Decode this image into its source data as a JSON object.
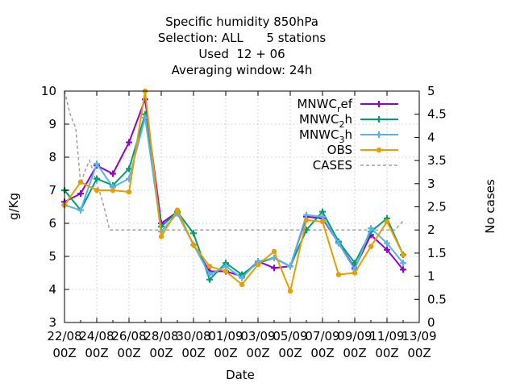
{
  "chart_data": {
    "type": "line",
    "title_lines": [
      "Specific humidity 850hPa",
      "Selection: ALL      5 stations",
      "Used  12 + 06",
      "Averaging window: 24h"
    ],
    "xlabel": "Date",
    "ylabel": "g/Kg",
    "y2label": "No cases",
    "ylim": [
      3,
      10
    ],
    "y2lim": [
      0,
      5
    ],
    "y_ticks": [
      "3",
      "4",
      "5",
      "6",
      "7",
      "8",
      "9",
      "10"
    ],
    "y2_ticks": [
      "0",
      "0.5",
      "1",
      "1.5",
      "2",
      "2.5",
      "3",
      "3.5",
      "4",
      "4.5",
      "5"
    ],
    "x_ticks": [
      {
        "line1": "22/08",
        "line2": "00Z"
      },
      {
        "line1": "24/08",
        "line2": "00Z"
      },
      {
        "line1": "26/08",
        "line2": "00Z"
      },
      {
        "line1": "28/08",
        "line2": "00Z"
      },
      {
        "line1": "30/08",
        "line2": "00Z"
      },
      {
        "line1": "01/09",
        "line2": "00Z"
      },
      {
        "line1": "03/09",
        "line2": "00Z"
      },
      {
        "line1": "05/09",
        "line2": "00Z"
      },
      {
        "line1": "07/09",
        "line2": "00Z"
      },
      {
        "line1": "09/09",
        "line2": "00Z"
      },
      {
        "line1": "11/09",
        "line2": "00Z"
      },
      {
        "line1": "13/09",
        "line2": "00Z"
      }
    ],
    "x_dates": [
      "22/08",
      "23/08",
      "24/08",
      "25/08",
      "26/08",
      "27/08",
      "28/08",
      "29/08",
      "30/08",
      "31/08",
      "01/09",
      "02/09",
      "03/09",
      "04/09",
      "05/09",
      "06/09",
      "07/09",
      "08/09",
      "09/09",
      "10/09",
      "11/09",
      "12/09"
    ],
    "grid": true,
    "legend_position": "top-right",
    "series": [
      {
        "name": "MNWC_ref",
        "legend_main": "MNWC",
        "legend_sub": "r",
        "legend_tail": "ef",
        "color": "#9400d3",
        "marker": "plus",
        "values": [
          6.65,
          6.9,
          7.75,
          7.5,
          8.45,
          9.75,
          6.0,
          6.35,
          5.35,
          4.55,
          4.55,
          4.4,
          4.85,
          4.65,
          4.7,
          6.2,
          6.15,
          5.4,
          4.65,
          5.65,
          5.2,
          4.6
        ]
      },
      {
        "name": "MNWC_2h",
        "legend_main": "MNWC",
        "legend_sub": "2",
        "legend_tail": "h",
        "color": "#009e73",
        "marker": "plus",
        "values": [
          7.0,
          6.4,
          7.35,
          7.15,
          7.65,
          9.3,
          5.9,
          6.35,
          5.7,
          4.3,
          4.8,
          4.45,
          4.8,
          4.95,
          4.7,
          5.8,
          6.35,
          5.45,
          4.8,
          5.75,
          6.15,
          5.05
        ]
      },
      {
        "name": "MNWC_3h",
        "legend_main": "MNWC",
        "legend_sub": "3",
        "legend_tail": "h",
        "color": "#56b4e9",
        "marker": "plus",
        "values": [
          6.55,
          6.4,
          7.8,
          7.1,
          7.35,
          9.2,
          5.75,
          6.3,
          5.35,
          4.45,
          4.7,
          4.35,
          4.85,
          4.95,
          4.7,
          6.25,
          6.2,
          5.4,
          4.6,
          5.85,
          5.4,
          4.8
        ]
      },
      {
        "name": "OBS",
        "legend_main": "OBS",
        "color": "#e69f00",
        "marker": "circle",
        "values": [
          6.55,
          7.25,
          7.0,
          7.0,
          6.95,
          10.0,
          5.6,
          6.4,
          5.35,
          4.7,
          4.55,
          4.15,
          4.75,
          5.15,
          3.95,
          6.1,
          6.05,
          4.45,
          4.5,
          5.3,
          6.05,
          5.05
        ]
      }
    ],
    "cases": {
      "name": "CASES",
      "color": "#a0a0a0",
      "axis": "y2",
      "x": [
        0,
        0.35,
        0.7,
        1.0,
        1.3,
        1.55,
        1.75,
        2.0,
        2.2,
        2.45,
        2.8,
        3.0,
        20.5,
        21.0
      ],
      "values": [
        5.0,
        4.5,
        4.2,
        3.0,
        3.3,
        3.5,
        3.3,
        3.0,
        2.8,
        2.5,
        2.0,
        2.0,
        2.0,
        2.2
      ]
    }
  }
}
